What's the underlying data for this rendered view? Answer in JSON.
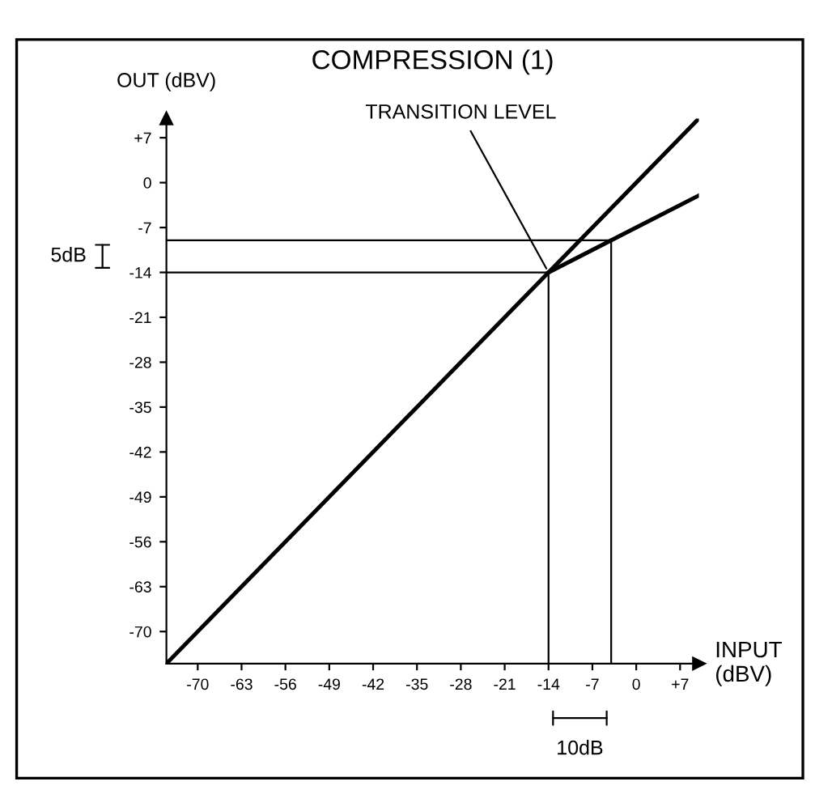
{
  "chart_data": {
    "type": "line",
    "title": "COMPRESSION (1)",
    "xlabel": "INPUT\n(dBV)",
    "ylabel": "OUT (dBV)",
    "series": [
      {
        "x": [
          -75,
          10
        ],
        "values": [
          -75,
          10
        ],
        "color": "#000000"
      },
      {
        "x": [
          -14,
          10
        ],
        "values": [
          -14,
          -2
        ],
        "color": "#000000"
      }
    ],
    "xlim": [
      -75,
      10
    ],
    "ylim": [
      -75,
      10
    ],
    "xticks": [
      -70,
      -63,
      -56,
      -49,
      -42,
      -35,
      -28,
      -21,
      -14,
      -7,
      0,
      {
        "value": 7,
        "label": "+7"
      }
    ],
    "yticks": [
      -70,
      -63,
      -56,
      -49,
      -42,
      -35,
      -28,
      -21,
      -14,
      -7,
      0,
      {
        "value": 7,
        "label": "+7"
      }
    ],
    "ref_lines": [
      {
        "axis": "x",
        "value": -14,
        "label": null,
        "color": "#000000"
      },
      {
        "axis": "x",
        "value": -4,
        "label": null,
        "color": "#000000"
      },
      {
        "axis": "y",
        "value": -14,
        "label": null,
        "color": "#000000"
      },
      {
        "axis": "y",
        "value": -9,
        "label": null,
        "color": "#000000"
      }
    ],
    "annotations": [
      {
        "text": "TRANSITION LEVEL",
        "x": -14,
        "y": -14
      },
      "5dB",
      "10dB"
    ],
    "grid": false,
    "marker": "none",
    "line_style": "solid"
  }
}
